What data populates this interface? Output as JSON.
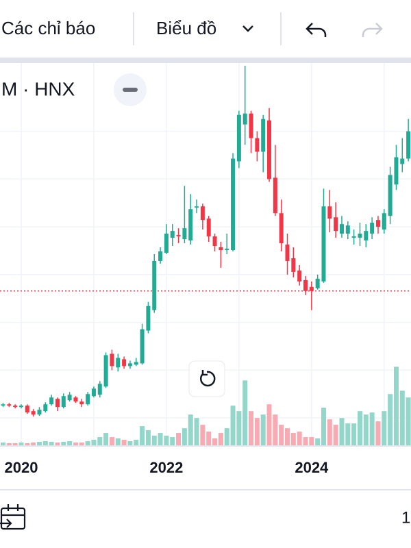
{
  "toolbar": {
    "indicators": "Các chỉ báo",
    "chart": "Biểu đồ"
  },
  "chart_data": {
    "type": "candlestick",
    "title": "M · HNX",
    "categories": [
      null,
      null,
      null,
      "2020",
      null,
      null,
      null,
      null,
      null,
      null,
      null,
      null,
      null,
      null,
      null,
      null,
      null,
      null,
      null,
      null,
      null,
      null,
      null,
      null,
      null,
      null,
      null,
      "2022",
      null,
      null,
      null,
      null,
      null,
      null,
      null,
      null,
      null,
      null,
      null,
      null,
      null,
      null,
      null,
      null,
      null,
      null,
      null,
      null,
      null,
      null,
      null,
      "2024",
      null,
      null,
      null,
      null,
      null,
      null,
      null,
      null,
      null,
      null,
      null,
      null,
      null,
      null,
      null,
      null
    ],
    "open": [
      5.8,
      6.0,
      5.8,
      5.6,
      5.8,
      5.0,
      4.5,
      5.0,
      6.0,
      6.8,
      5.6,
      6.6,
      7.0,
      6.4,
      6.0,
      7.2,
      7.4,
      8.6,
      13.4,
      11.4,
      12.6,
      11.6,
      11.8,
      12.0,
      16.8,
      19.8,
      27.0,
      28.2,
      30.4,
      30.8,
      30.2,
      30.0,
      34.8,
      35.0,
      33.2,
      30.6,
      29.0,
      28.6,
      28.6,
      41.6,
      47.0,
      48.6,
      45.0,
      43.0,
      47.6,
      39.2,
      34.0,
      29.4,
      27.4,
      25.6,
      24.2,
      23.2,
      23.0,
      24.0,
      35.0,
      33.4,
      31.0,
      31.0,
      30.4,
      30.4,
      30.0,
      31.0,
      33.0,
      31.6,
      33.6,
      38.2,
      41.2,
      42.0
    ],
    "high": [
      6.2,
      6.2,
      6.0,
      6.0,
      6.0,
      5.3,
      5.6,
      6.3,
      7.4,
      7.0,
      7.6,
      7.8,
      7.2,
      6.8,
      7.8,
      8.6,
      9.4,
      13.6,
      14.0,
      13.4,
      13.0,
      12.4,
      12.8,
      17.8,
      21.0,
      28.0,
      29.0,
      32.4,
      32.4,
      31.8,
      38.0,
      36.8,
      36.0,
      35.4,
      33.6,
      31.0,
      29.8,
      31.0,
      42.8,
      49.0,
      55.6,
      49.0,
      46.0,
      48.4,
      49.4,
      44.0,
      36.0,
      31.0,
      29.0,
      26.4,
      24.8,
      24.0,
      25.0,
      37.6,
      37.4,
      35.6,
      33.6,
      32.8,
      31.6,
      32.6,
      32.4,
      33.4,
      33.6,
      34.6,
      40.8,
      44.0,
      45.0,
      47.8
    ],
    "low": [
      5.6,
      5.6,
      5.4,
      5.4,
      4.6,
      4.2,
      4.3,
      4.8,
      5.8,
      5.0,
      5.4,
      6.4,
      6.2,
      5.6,
      5.8,
      7.0,
      7.0,
      8.4,
      11.0,
      10.8,
      11.2,
      11.2,
      11.6,
      11.8,
      16.4,
      19.4,
      26.6,
      28.0,
      29.2,
      29.6,
      29.6,
      29.4,
      34.0,
      31.6,
      29.8,
      28.4,
      26.0,
      28.0,
      28.4,
      40.6,
      44.0,
      42.8,
      41.6,
      40.0,
      38.6,
      33.6,
      28.4,
      25.0,
      24.6,
      23.4,
      22.0,
      19.8,
      22.8,
      23.8,
      31.2,
      30.4,
      30.4,
      30.2,
      29.4,
      29.2,
      29.0,
      30.2,
      31.0,
      31.0,
      32.4,
      37.4,
      40.0,
      41.6
    ],
    "close": [
      6.0,
      5.8,
      5.6,
      5.8,
      4.8,
      4.5,
      5.2,
      6.0,
      7.0,
      5.6,
      7.2,
      7.4,
      6.4,
      6.0,
      7.5,
      8.3,
      9.0,
      13.2,
      11.6,
      12.8,
      11.6,
      12.0,
      12.2,
      17.0,
      20.4,
      27.0,
      28.4,
      31.0,
      31.4,
      30.6,
      31.8,
      34.6,
      35.0,
      33.0,
      30.6,
      29.2,
      28.6,
      28.8,
      42.0,
      48.4,
      48.6,
      45.0,
      43.0,
      47.8,
      39.0,
      34.0,
      29.6,
      27.0,
      25.4,
      24.0,
      22.6,
      22.6,
      24.4,
      35.0,
      33.2,
      31.4,
      32.4,
      32.2,
      30.6,
      31.0,
      31.4,
      32.6,
      32.0,
      34.0,
      39.6,
      42.2,
      42.0,
      46.0
    ],
    "volume": [
      4,
      3,
      3,
      4,
      3,
      4,
      5,
      6,
      5,
      4,
      5,
      6,
      4,
      4,
      6,
      8,
      12,
      18,
      12,
      10,
      8,
      6,
      8,
      28,
      22,
      14,
      18,
      14,
      12,
      18,
      25,
      45,
      40,
      30,
      20,
      10,
      18,
      25,
      58,
      50,
      95,
      50,
      40,
      45,
      60,
      45,
      30,
      25,
      18,
      20,
      12,
      12,
      10,
      55,
      38,
      30,
      40,
      32,
      32,
      50,
      45,
      48,
      35,
      50,
      75,
      115,
      80,
      70
    ],
    "ylim": [
      0,
      56
    ],
    "volume_lim": [
      0,
      560
    ],
    "grid_lines": [
      4,
      11,
      18,
      25,
      32,
      39,
      46
    ],
    "price_line": 22.6,
    "up_color": "#22ab94",
    "down_color": "#f23645",
    "up_volume_color": "#93d6ca",
    "down_volume_color": "#f8aab2"
  },
  "footer": {
    "range": "1"
  }
}
